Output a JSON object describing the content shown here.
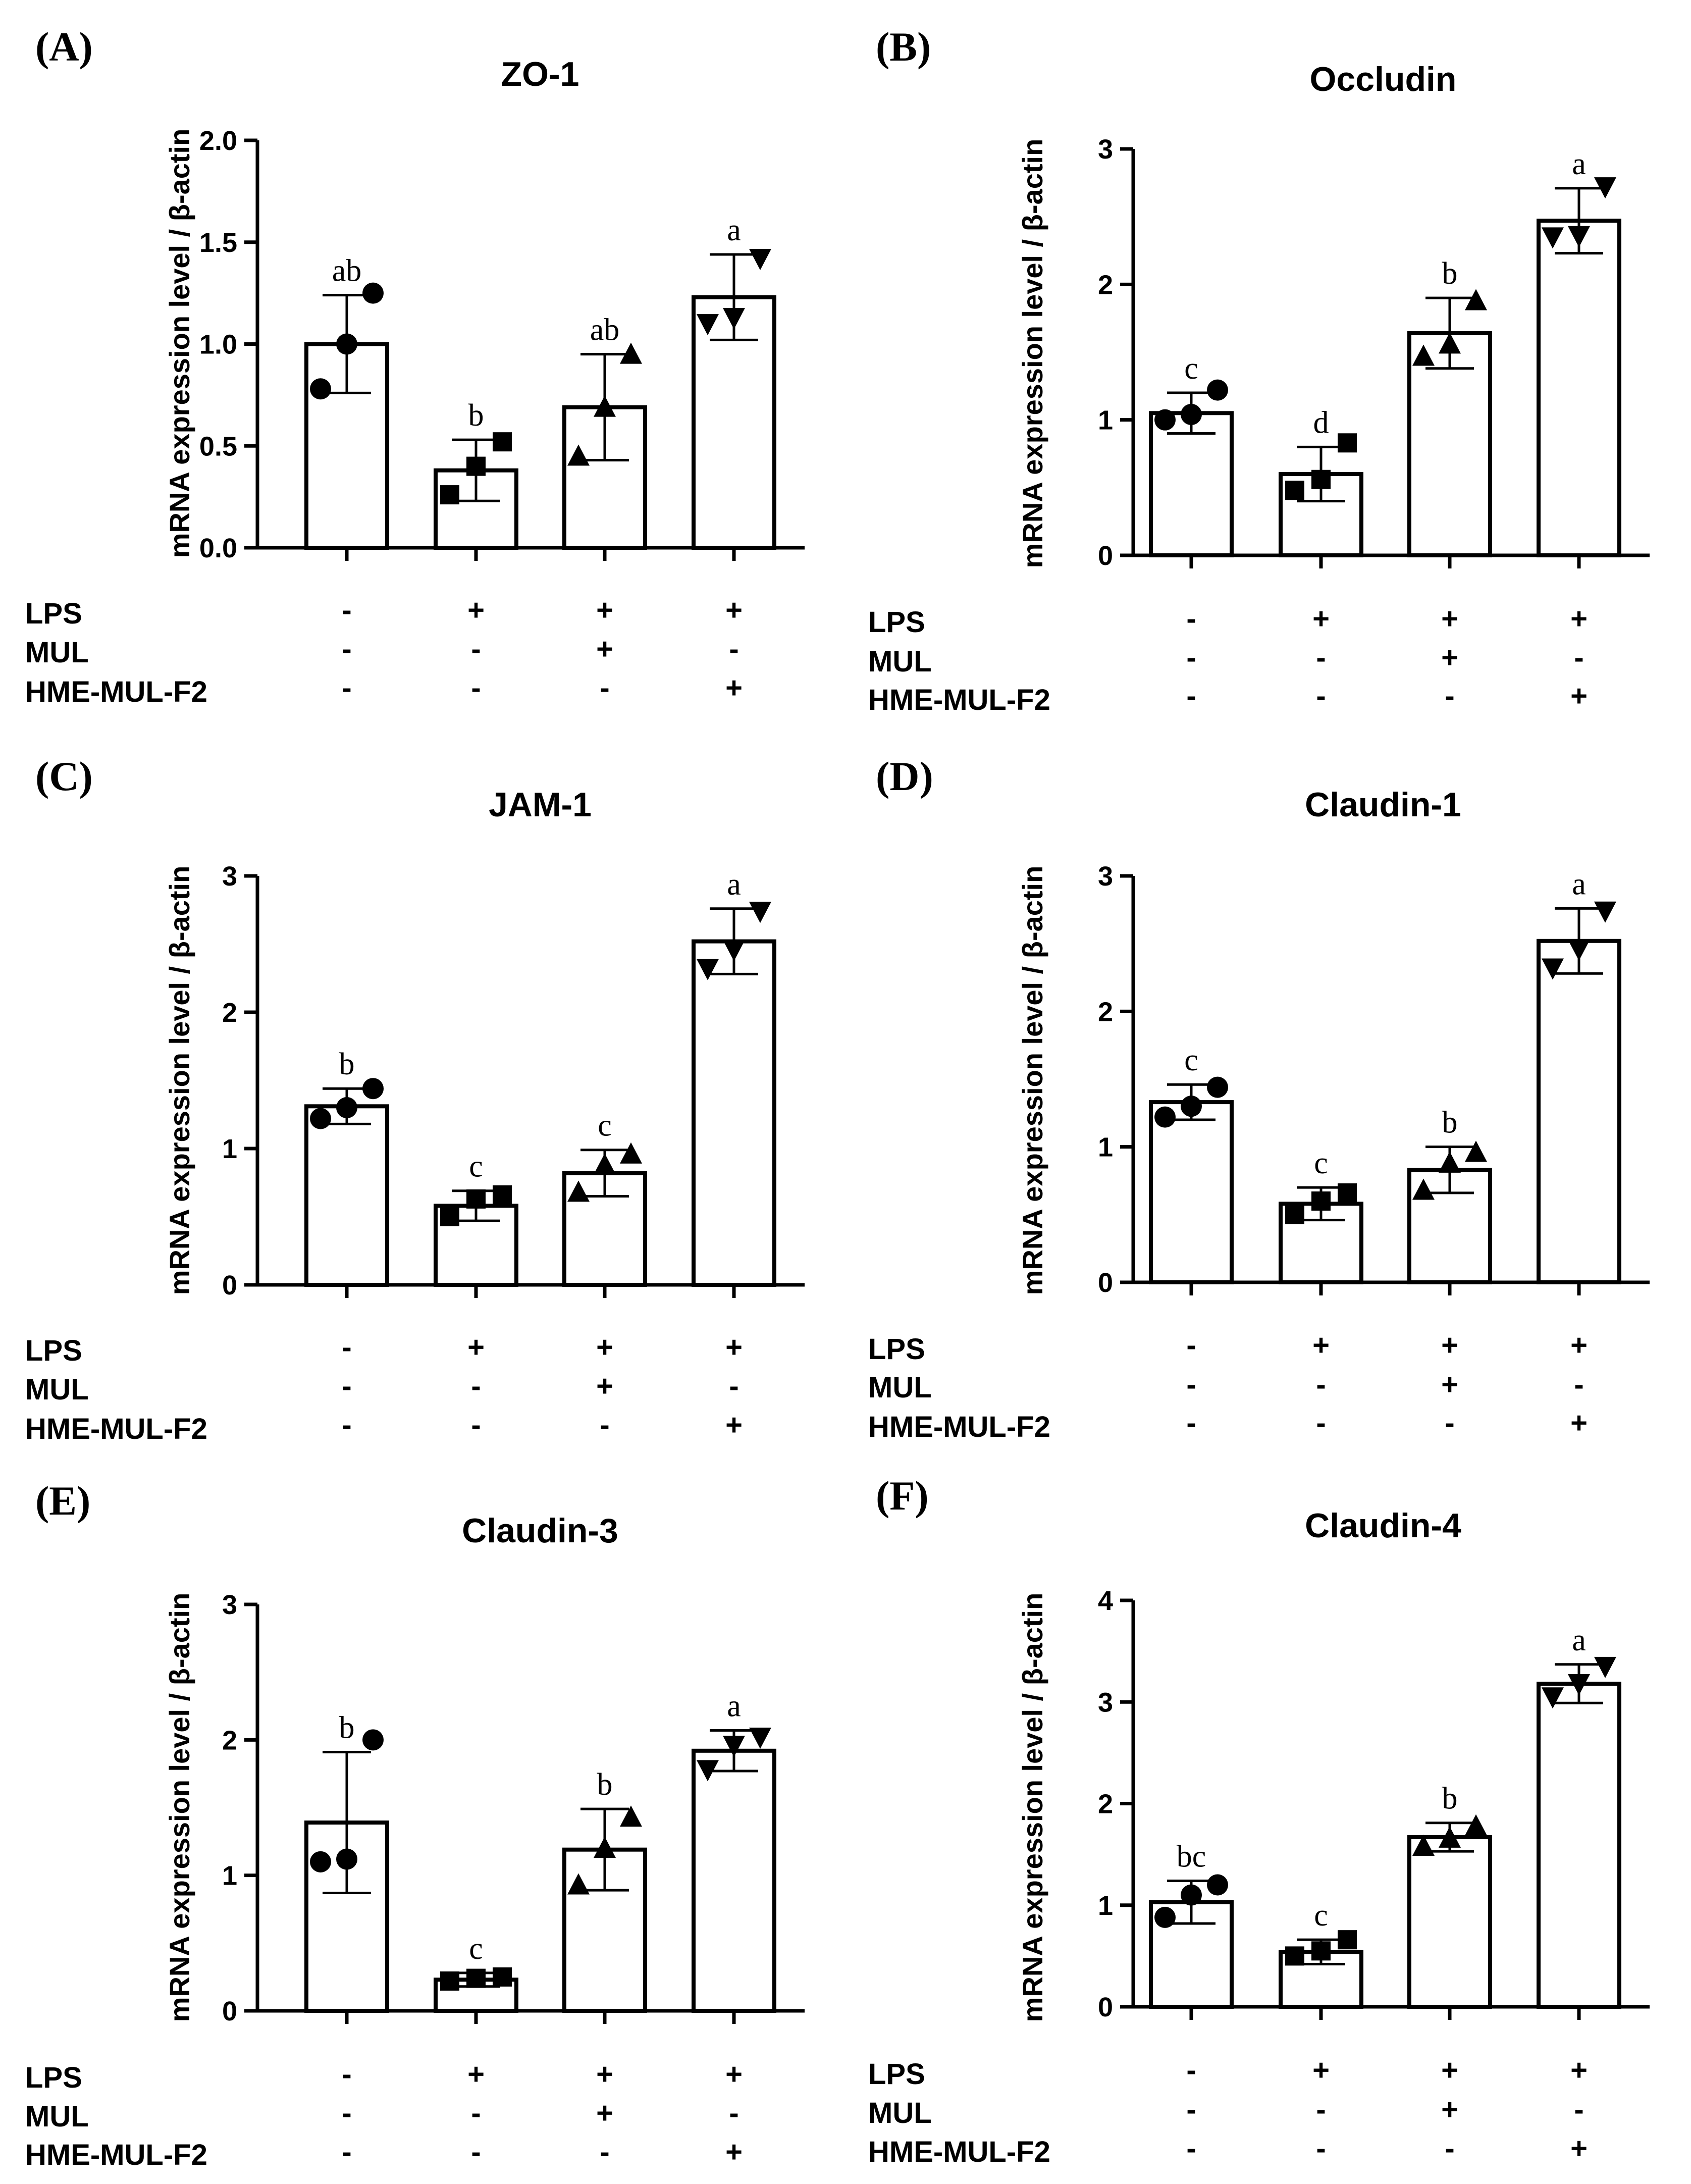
{
  "row_labels": [
    "LPS",
    "MUL",
    "HME-MUL-F2"
  ],
  "treatments": [
    [
      "-",
      "+",
      "+",
      "+"
    ],
    [
      "-",
      "-",
      "+",
      "-"
    ],
    [
      "-",
      "-",
      "-",
      "+"
    ]
  ],
  "chart_data": [
    {
      "type": "bar",
      "panel": "(A)",
      "title": "ZO-1",
      "ylabel": "mRNA expression level / β-actin",
      "ylim": [
        0,
        2.0
      ],
      "ticks": [
        0,
        0.5,
        1.0,
        1.5,
        2.0
      ],
      "tick_labels": [
        "0.0",
        "0.5",
        "1.0",
        "1.5",
        "2.0"
      ],
      "groups": 4,
      "values": [
        1.0,
        0.38,
        0.69,
        1.23
      ],
      "errors": [
        0.24,
        0.15,
        0.26,
        0.21
      ],
      "letters": [
        "ab",
        "b",
        "ab",
        "a"
      ],
      "points": [
        [
          0.78,
          1.0,
          1.25
        ],
        [
          0.26,
          0.4,
          0.52
        ],
        [
          0.45,
          0.69,
          0.95
        ],
        [
          1.1,
          1.13,
          1.42
        ]
      ],
      "markers": [
        "circle",
        "square",
        "triangle-up",
        "triangle-down"
      ]
    },
    {
      "type": "bar",
      "panel": "(B)",
      "title": "Occludin",
      "ylabel": "mRNA expression level / β-actin",
      "ylim": [
        0,
        3
      ],
      "ticks": [
        0,
        1,
        2,
        3
      ],
      "tick_labels": [
        "0",
        "1",
        "2",
        "3"
      ],
      "groups": 4,
      "values": [
        1.05,
        0.6,
        1.64,
        2.47
      ],
      "errors": [
        0.15,
        0.2,
        0.26,
        0.24
      ],
      "letters": [
        "c",
        "d",
        "b",
        "a"
      ],
      "points": [
        [
          1.0,
          1.04,
          1.22
        ],
        [
          0.48,
          0.56,
          0.83
        ],
        [
          1.47,
          1.56,
          1.88
        ],
        [
          2.35,
          2.36,
          2.72
        ]
      ],
      "markers": [
        "circle",
        "square",
        "triangle-up",
        "triangle-down"
      ]
    },
    {
      "type": "bar",
      "panel": "(C)",
      "title": "JAM-1",
      "ylabel": "mRNA expression level / β-actin",
      "ylim": [
        0,
        3
      ],
      "ticks": [
        0,
        1,
        2,
        3
      ],
      "tick_labels": [
        "0",
        "1",
        "2",
        "3"
      ],
      "groups": 4,
      "values": [
        1.31,
        0.58,
        0.82,
        2.52
      ],
      "errors": [
        0.13,
        0.11,
        0.17,
        0.24
      ],
      "letters": [
        "b",
        "c",
        "c",
        "a"
      ],
      "points": [
        [
          1.22,
          1.3,
          1.44
        ],
        [
          0.5,
          0.63,
          0.66
        ],
        [
          0.68,
          0.88,
          0.96
        ],
        [
          2.32,
          2.46,
          2.74
        ]
      ],
      "markers": [
        "circle",
        "square",
        "triangle-up",
        "triangle-down"
      ]
    },
    {
      "type": "bar",
      "panel": "(D)",
      "title": "Claudin-1",
      "ylabel": "mRNA expression level / β-actin",
      "ylim": [
        0,
        3
      ],
      "ticks": [
        0,
        1,
        2,
        3
      ],
      "tick_labels": [
        "0",
        "1",
        "2",
        "3"
      ],
      "groups": 4,
      "values": [
        1.33,
        0.58,
        0.83,
        2.52
      ],
      "errors": [
        0.13,
        0.12,
        0.17,
        0.24
      ],
      "letters": [
        "c",
        "c",
        "b",
        "a"
      ],
      "points": [
        [
          1.22,
          1.3,
          1.44
        ],
        [
          0.5,
          0.6,
          0.66
        ],
        [
          0.68,
          0.88,
          0.96
        ],
        [
          2.32,
          2.46,
          2.74
        ]
      ],
      "markers": [
        "circle",
        "square",
        "triangle-up",
        "triangle-down"
      ]
    },
    {
      "type": "bar",
      "panel": "(E)",
      "title": "Claudin-3",
      "ylabel": "mRNA expression level / β-actin",
      "ylim": [
        0,
        3
      ],
      "ticks": [
        0,
        1,
        2,
        3
      ],
      "tick_labels": [
        "0",
        "1",
        "2",
        "3"
      ],
      "groups": 4,
      "values": [
        1.39,
        0.23,
        1.19,
        1.92
      ],
      "errors": [
        0.52,
        0.05,
        0.3,
        0.15
      ],
      "letters": [
        "b",
        "c",
        "b",
        "a"
      ],
      "points": [
        [
          1.1,
          1.12,
          2.0
        ],
        [
          0.22,
          0.24,
          0.25
        ],
        [
          0.93,
          1.2,
          1.43
        ],
        [
          1.78,
          1.96,
          2.02
        ]
      ],
      "markers": [
        "circle",
        "square",
        "triangle-up",
        "triangle-down"
      ]
    },
    {
      "type": "bar",
      "panel": "(F)",
      "title": "Claudin-4",
      "ylabel": "mRNA expression level / β-actin",
      "ylim": [
        0,
        4
      ],
      "ticks": [
        0,
        1,
        2,
        3,
        4
      ],
      "tick_labels": [
        "0",
        "1",
        "2",
        "3",
        "4"
      ],
      "groups": 4,
      "values": [
        1.03,
        0.54,
        1.67,
        3.18
      ],
      "errors": [
        0.21,
        0.12,
        0.14,
        0.19
      ],
      "letters": [
        "bc",
        "c",
        "b",
        "a"
      ],
      "points": [
        [
          0.88,
          1.1,
          1.2
        ],
        [
          0.5,
          0.55,
          0.66
        ],
        [
          1.58,
          1.66,
          1.78
        ],
        [
          3.05,
          3.18,
          3.35
        ]
      ],
      "markers": [
        "circle",
        "square",
        "triangle-up",
        "triangle-down"
      ]
    }
  ]
}
